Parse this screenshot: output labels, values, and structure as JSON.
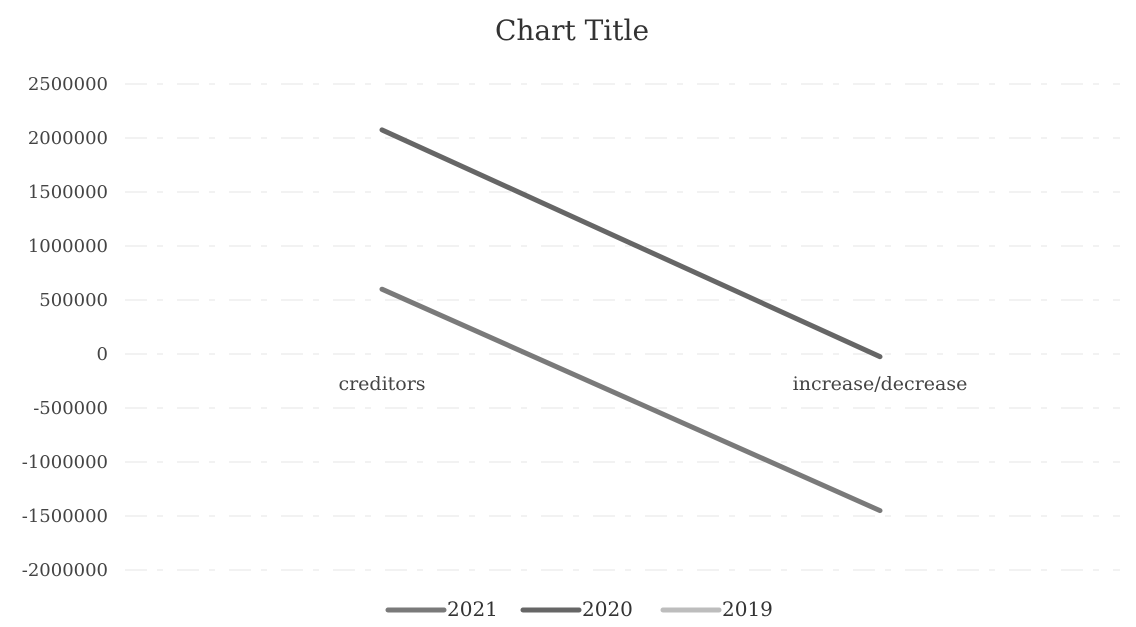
{
  "chart_data": {
    "type": "line",
    "title": "Chart Title",
    "xlabel": "",
    "ylabel": "",
    "categories": [
      "creditors",
      "increase/decrease"
    ],
    "series": [
      {
        "name": "2021",
        "values": [
          600000,
          -1450000
        ],
        "color": "#7a7a7a"
      },
      {
        "name": "2020",
        "values": [
          2075000,
          -25000
        ],
        "color": "#666666"
      },
      {
        "name": "2019",
        "values": [
          null,
          null
        ],
        "color": "#bdbdbd"
      }
    ],
    "ylim": [
      -2000000,
      2500000
    ],
    "yticks": [
      "2500000",
      "2000000",
      "1500000",
      "1000000",
      "500000",
      "0",
      "-500000",
      "-1000000",
      "-1500000",
      "-2000000"
    ],
    "grid": true,
    "legend_position": "bottom"
  }
}
